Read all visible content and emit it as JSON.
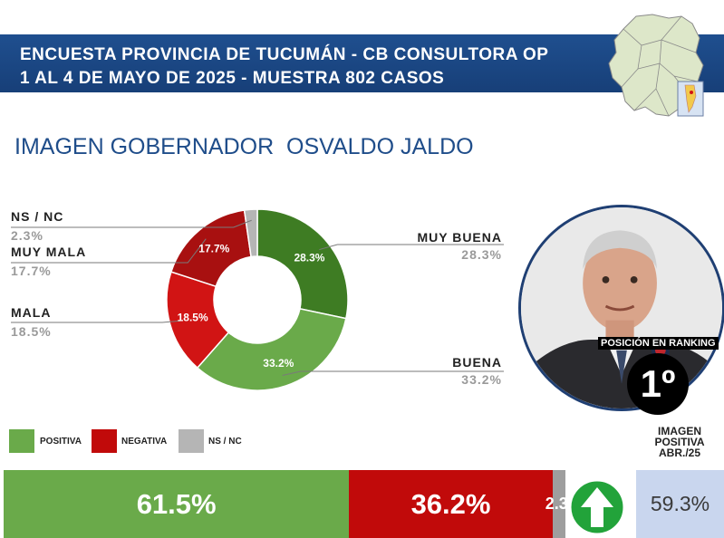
{
  "header": {
    "line1": "ENCUESTA PROVINCIA DE TUCUMÁN - CB CONSULTORA OP",
    "line2": "1 AL 4 DE MAYO DE 2025 - MUESTRA 802 CASOS"
  },
  "subtitle": "IMAGEN GOBERNADOR  OSVALDO JALDO",
  "chart_data": [
    {
      "type": "pie",
      "title": "IMAGEN GOBERNADOR  OSVALDO JALDO",
      "categories": [
        "MUY BUENA",
        "BUENA",
        "MALA",
        "MUY MALA",
        "NS / NC"
      ],
      "values": [
        28.3,
        33.2,
        18.5,
        17.7,
        2.3
      ],
      "value_labels": [
        "28.3%",
        "33.2%",
        "18.5%",
        "17.7%",
        "2.3%"
      ],
      "side_labels": [
        "28.3%",
        "33.2%",
        "18.5%",
        "17.7%",
        "2.3%"
      ],
      "colors": [
        "#3e7c23",
        "#6aaa4a",
        "#d11414",
        "#a81010",
        "#b5b5b5"
      ],
      "donut": true
    },
    {
      "type": "bar",
      "stacked": true,
      "orientation": "horizontal",
      "categories": [
        "POSITIVA",
        "NEGATIVA",
        "NS / NC"
      ],
      "values": [
        61.5,
        36.2,
        2.3
      ],
      "value_labels": [
        "61.5%",
        "36.2%",
        "2.3%"
      ],
      "colors": [
        "#6aaa4a",
        "#c10a0a",
        "#9e9e9e"
      ]
    }
  ],
  "legend": [
    {
      "label": "POSITIVA",
      "color": "#6aaa4a"
    },
    {
      "label": "NEGATIVA",
      "color": "#c10a0a"
    },
    {
      "label": "NS / NC",
      "color": "#b5b5b5"
    }
  ],
  "ranking": {
    "label": "POSICIÓN EN RANKING",
    "value": "1º"
  },
  "previous": {
    "title_line1": "IMAGEN",
    "title_line2": "POSITIVA",
    "title_line3": "ABR./25",
    "value": "59.3%",
    "trend_icon": "up-arrow-icon",
    "trend_color": "#22a33a"
  }
}
